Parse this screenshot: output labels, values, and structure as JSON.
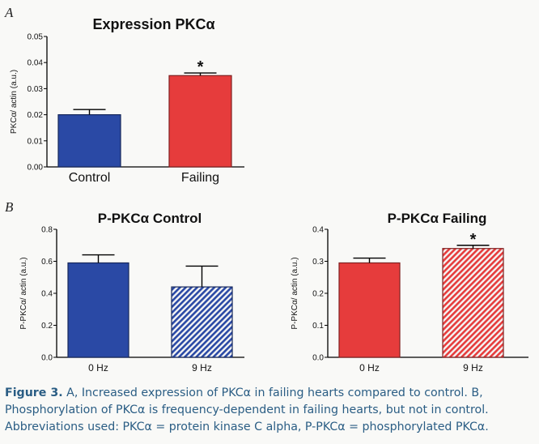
{
  "panels": {
    "a": "A",
    "b": "B"
  },
  "chart_data": [
    {
      "type": "bar",
      "title": "Expression PKCα",
      "ylabel": "PKCα/ actin (a.u.)",
      "xlabel": "",
      "ylim": [
        0,
        0.05
      ],
      "yticks": [
        "0.00",
        "0.01",
        "0.02",
        "0.03",
        "0.04",
        "0.05"
      ],
      "categories": [
        "Control",
        "Failing"
      ],
      "values": [
        0.02,
        0.035
      ],
      "errors": [
        0.002,
        0.001
      ],
      "bar_colors": [
        "#2a49a5",
        "#e63c3c"
      ],
      "patterns": [
        "solid",
        "solid"
      ],
      "significance": [
        "",
        "*"
      ]
    },
    {
      "type": "bar",
      "title": "P-PKCα Control",
      "ylabel": "P-PKCα/ actin (a.u.)",
      "xlabel": "",
      "ylim": [
        0,
        0.8
      ],
      "yticks": [
        "0.0",
        "0.2",
        "0.4",
        "0.6",
        "0.8"
      ],
      "categories": [
        "0 Hz",
        "9 Hz"
      ],
      "values": [
        0.59,
        0.44
      ],
      "errors": [
        0.05,
        0.13
      ],
      "bar_colors": [
        "#2a49a5",
        "#2a49a5"
      ],
      "patterns": [
        "solid",
        "hatched"
      ],
      "significance": [
        "",
        ""
      ]
    },
    {
      "type": "bar",
      "title": "P-PKCα Failing",
      "ylabel": "P-PKCα/ actin (a.u.)",
      "xlabel": "",
      "ylim": [
        0,
        0.4
      ],
      "yticks": [
        "0.0",
        "0.1",
        "0.2",
        "0.3",
        "0.4"
      ],
      "categories": [
        "0 Hz",
        "9 Hz"
      ],
      "values": [
        0.295,
        0.34
      ],
      "errors": [
        0.015,
        0.01
      ],
      "bar_colors": [
        "#e63c3c",
        "#e63c3c"
      ],
      "patterns": [
        "solid",
        "hatched"
      ],
      "significance": [
        "",
        "*"
      ]
    }
  ],
  "caption": {
    "label": "Figure 3.",
    "text": " A, Increased expression of PKCα in failing hearts compared to control. B, Phosphorylation of PKCα is frequency-dependent in failing hearts, but not in control. Abbreviations used: PKCα = protein kinase C alpha, P-PKCα = phosphorylated PKCα."
  }
}
